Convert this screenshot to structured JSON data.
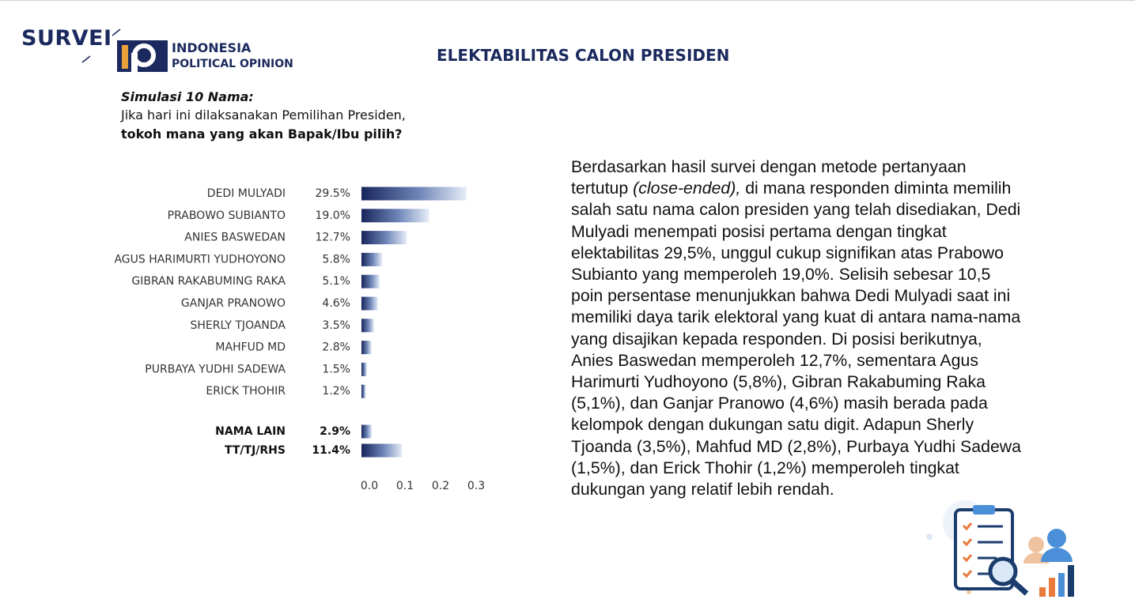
{
  "header": {
    "brand": "SURVEI",
    "org_line1": "INDONESIA",
    "org_line2": "POLITICAL OPINION"
  },
  "question": {
    "label": "Simulasi 10 Nama:",
    "line1": "Jika hari ini dilaksanakan Pemilihan Presiden,",
    "line2": "tokoh mana yang akan Bapak/Ibu pilih?"
  },
  "chart_data": {
    "type": "bar",
    "orientation": "horizontal",
    "title": "ELEKTABILITAS CALON PRESIDEN",
    "categories": [
      "DEDI MULYADI",
      "PRABOWO SUBIANTO",
      "ANIES BASWEDAN",
      "AGUS HARIMURTI YUDHOYONO",
      "GIBRAN RAKABUMING RAKA",
      "GANJAR PRANOWO",
      "SHERLY TJOANDA",
      "MAHFUD MD",
      "PURBAYA YUDHI SADEWA",
      "ERICK THOHIR",
      "NAMA LAIN",
      "TT/TJ/RHS"
    ],
    "values": [
      0.295,
      0.19,
      0.127,
      0.058,
      0.051,
      0.046,
      0.035,
      0.028,
      0.015,
      0.012,
      0.029,
      0.114
    ],
    "value_labels": [
      "29.5%",
      "19.0%",
      "12.7%",
      "5.8%",
      "5.1%",
      "4.6%",
      "3.5%",
      "2.8%",
      "1.5%",
      "1.2%",
      "2.9%",
      "11.4%"
    ],
    "color": "#17255c",
    "xlim": [
      0,
      0.3
    ],
    "xticks": [
      {
        "value": 0,
        "label": "0.0"
      },
      0.1,
      0.2,
      0.3
    ],
    "grid": false
  },
  "body": {
    "part1": "Berdasarkan hasil survei dengan metode pertanyaan tertutup ",
    "part2": "(close-ended),",
    "part3": " di mana responden diminta memilih salah satu nama calon presiden yang telah disediakan, Dedi Mulyadi menempati posisi pertama dengan tingkat elektabilitas 29,5%, unggul cukup signifikan atas Prabowo Subianto yang memperoleh 19,0%. Selisih sebesar 10,5 poin persentase menunjukkan bahwa Dedi Mulyadi saat ini memiliki daya tarik elektoral yang kuat di antara nama-nama yang disajikan kepada responden. Di posisi berikutnya, Anies Baswedan memperoleh 12,7%, sementara Agus Harimurti Yudhoyono (5,8%), Gibran Rakabuming Raka (5,1%), dan Ganjar Pranowo (4,6%) masih berada pada kelompok dengan dukungan satu digit. Adapun Sherly Tjoanda (3,5%), Mahfud MD (2,8%), Purbaya Yudhi Sadewa (1,5%), dan Erick Thohir (1,2%) memperoleh tingkat dukungan yang relatif lebih rendah."
  }
}
